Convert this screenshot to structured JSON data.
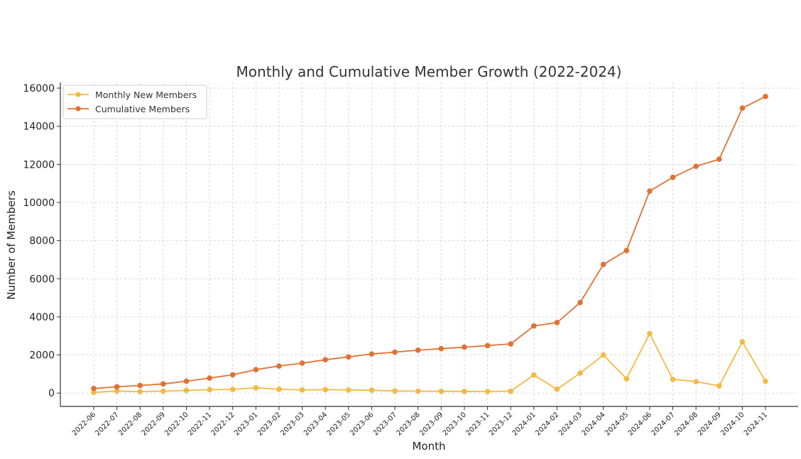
{
  "chart_data": {
    "type": "line",
    "title": "Monthly and Cumulative Member Growth (2022-2024)",
    "xlabel": "Month",
    "ylabel": "Number of Members",
    "ylim": [
      -700,
      16300
    ],
    "yticks": [
      0,
      2000,
      4000,
      6000,
      8000,
      10000,
      12000,
      14000,
      16000
    ],
    "ytick_labels": [
      "0",
      "2000",
      "4000",
      "6000",
      "8000",
      "10000",
      "12000",
      "14000",
      "16000"
    ],
    "grid": true,
    "legend_position": "top-left",
    "categories": [
      "2022-06",
      "2022-07",
      "2022-08",
      "2022-09",
      "2022-10",
      "2022-11",
      "2022-12",
      "2023-01",
      "2023-02",
      "2023-03",
      "2023-04",
      "2023-05",
      "2023-06",
      "2023-07",
      "2023-08",
      "2023-09",
      "2023-10",
      "2023-11",
      "2023-12",
      "2024-01",
      "2024-02",
      "2024-03",
      "2024-04",
      "2024-05",
      "2024-06",
      "2024-07",
      "2024-08",
      "2024-09",
      "2024-10",
      "2024-11"
    ],
    "series": [
      {
        "name": "Monthly New Members",
        "color": "#F4B942",
        "values": [
          40,
          110,
          80,
          100,
          140,
          180,
          190,
          280,
          200,
          160,
          180,
          160,
          150,
          110,
          100,
          90,
          90,
          80,
          100,
          950,
          200,
          1050,
          2000,
          750,
          3120,
          720,
          600,
          380,
          2690,
          620
        ]
      },
      {
        "name": "Cumulative Members",
        "color": "#E07135",
        "values": [
          240,
          330,
          400,
          480,
          620,
          790,
          960,
          1230,
          1420,
          1570,
          1750,
          1900,
          2050,
          2150,
          2250,
          2330,
          2410,
          2490,
          2580,
          3520,
          3700,
          4750,
          6750,
          7480,
          10600,
          11320,
          11900,
          12270,
          14950,
          15560
        ]
      }
    ]
  }
}
